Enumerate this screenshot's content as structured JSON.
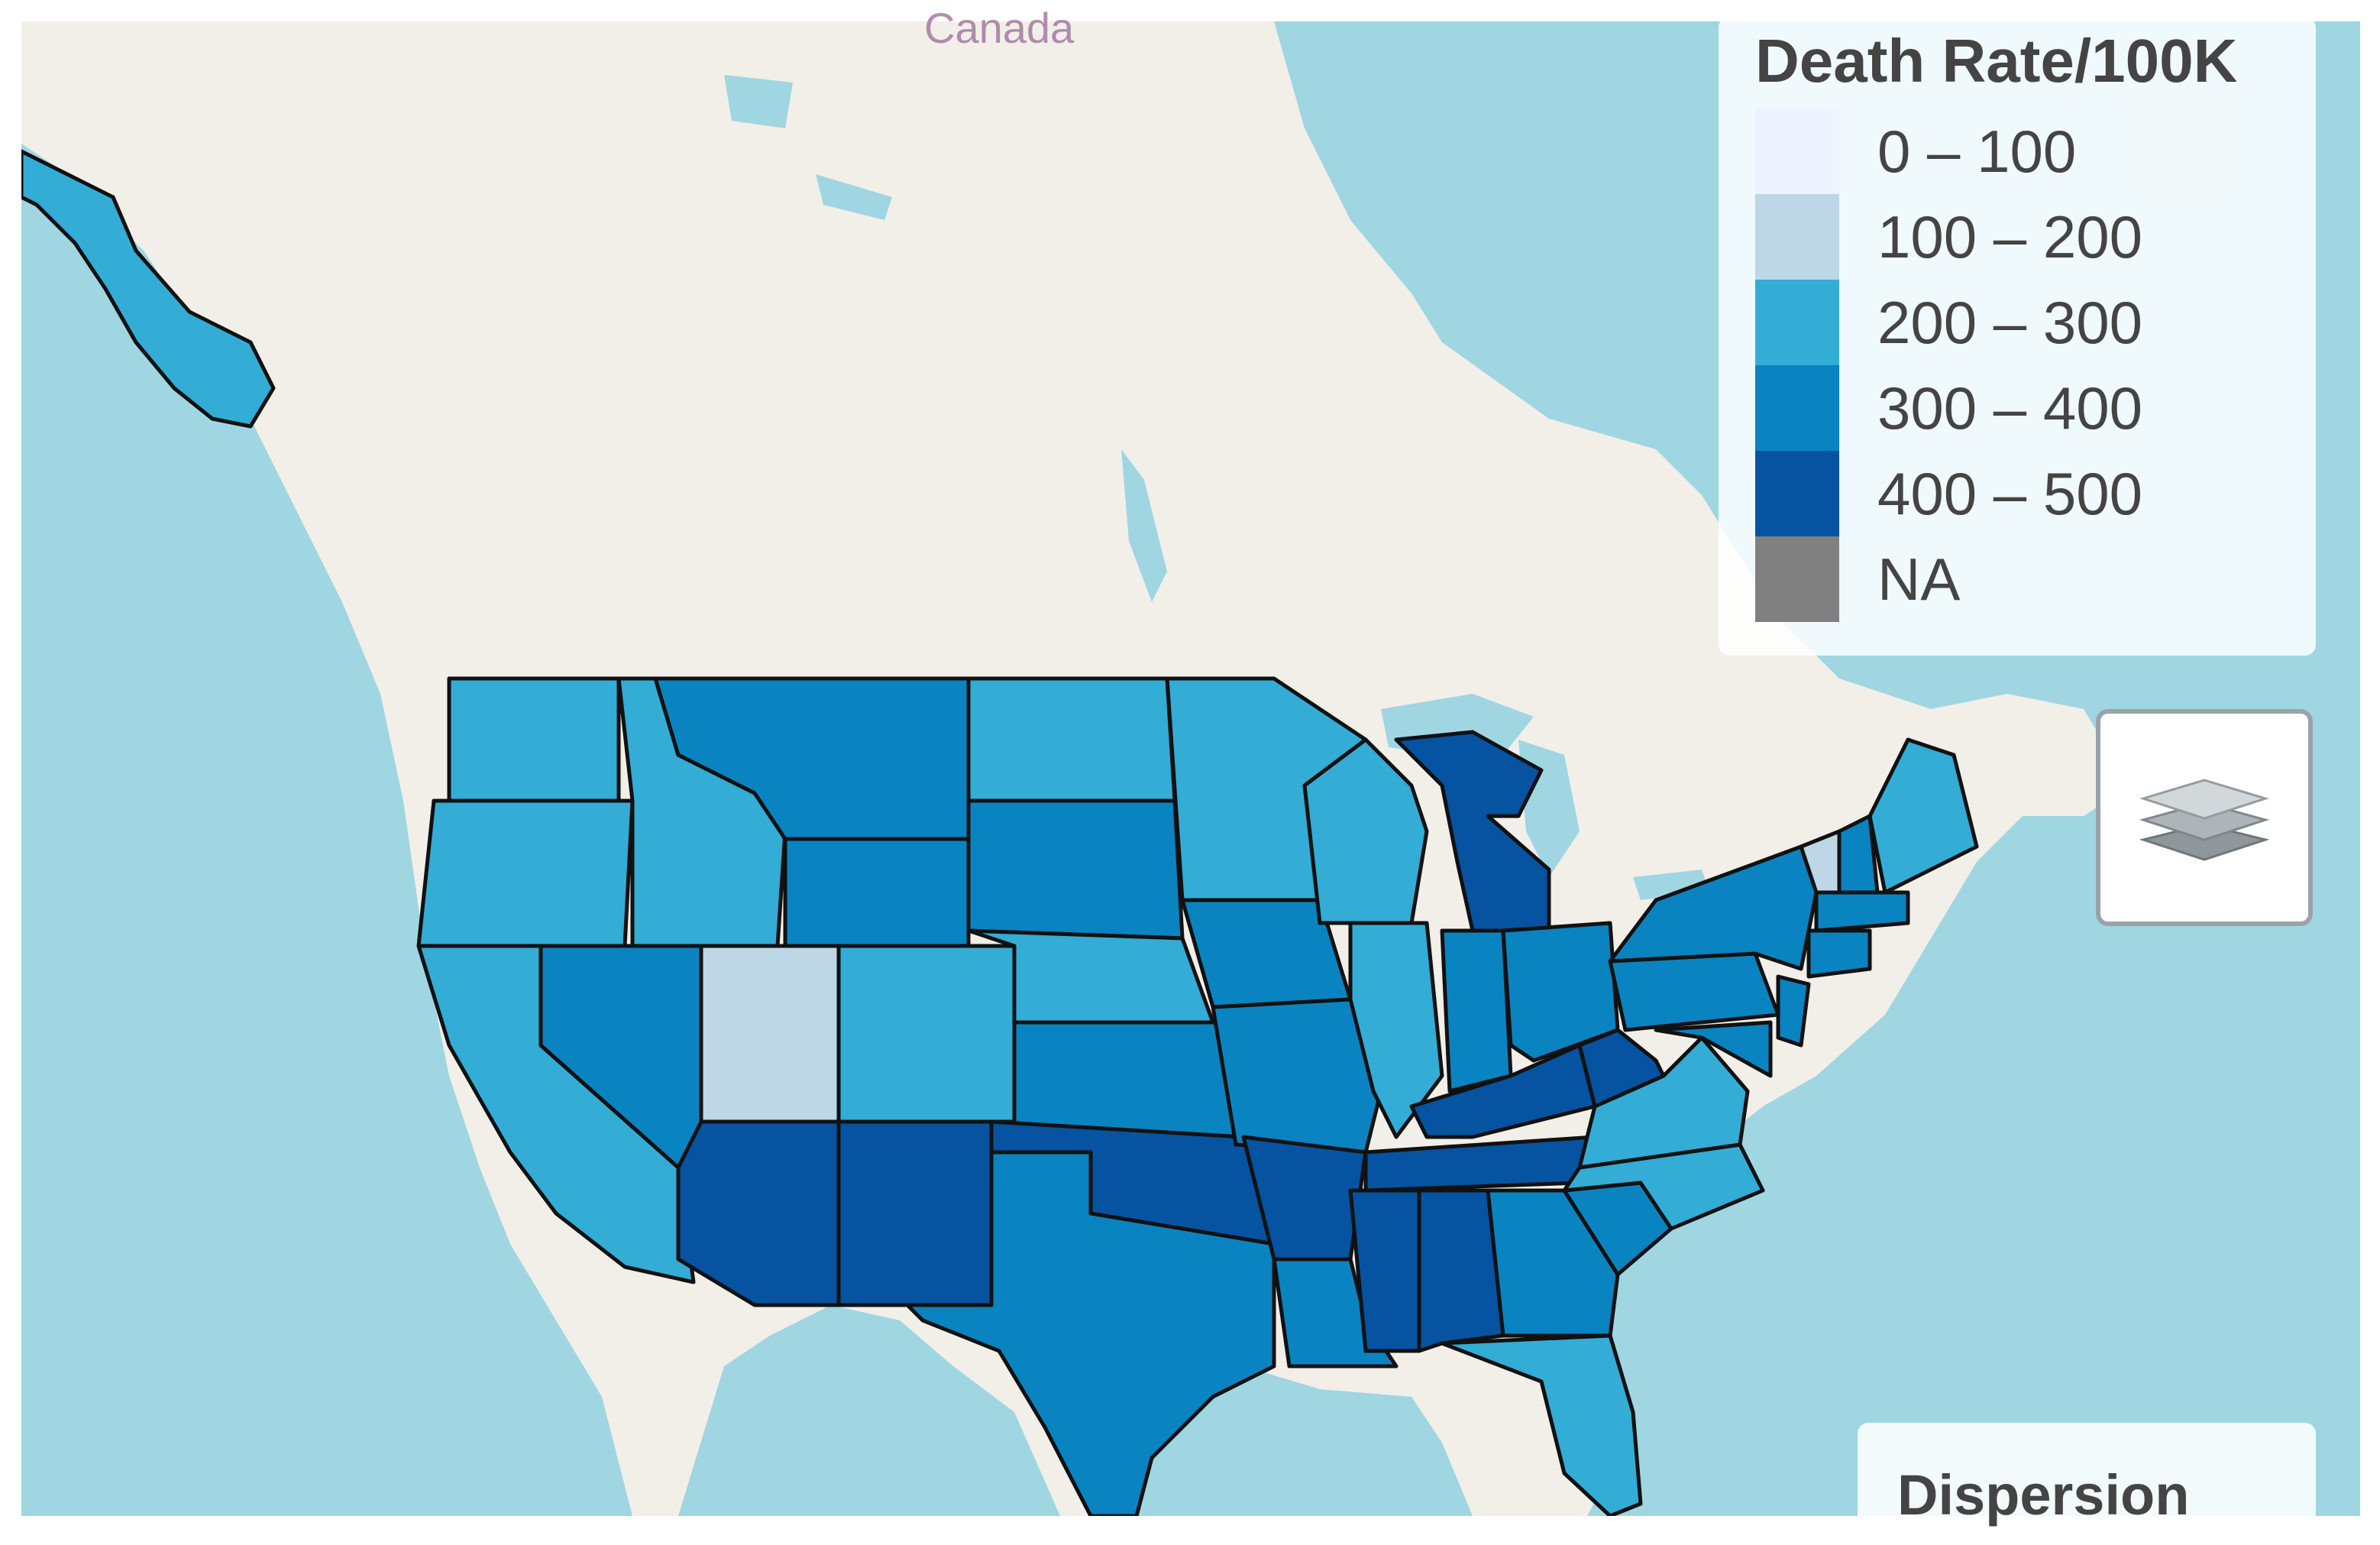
{
  "map": {
    "country_label": "Canada",
    "ocean_color": "#9fd6e2",
    "land_color": "#f2efe9",
    "border_color": "#111111"
  },
  "legend": {
    "title": "Death Rate/100K",
    "items": [
      {
        "label": "0 – 100",
        "color": "#eff3ff"
      },
      {
        "label": "100 – 200",
        "color": "#bdd7e7"
      },
      {
        "label": "200 – 300",
        "color": "#33acd6"
      },
      {
        "label": "300 – 400",
        "color": "#0a83c1"
      },
      {
        "label": "400 – 500",
        "color": "#0553a1"
      },
      {
        "label": "NA",
        "color": "#808080"
      }
    ]
  },
  "layers_control": {
    "icon": "layers-icon"
  },
  "dispersion_panel": {
    "title": "Dispersion"
  }
}
